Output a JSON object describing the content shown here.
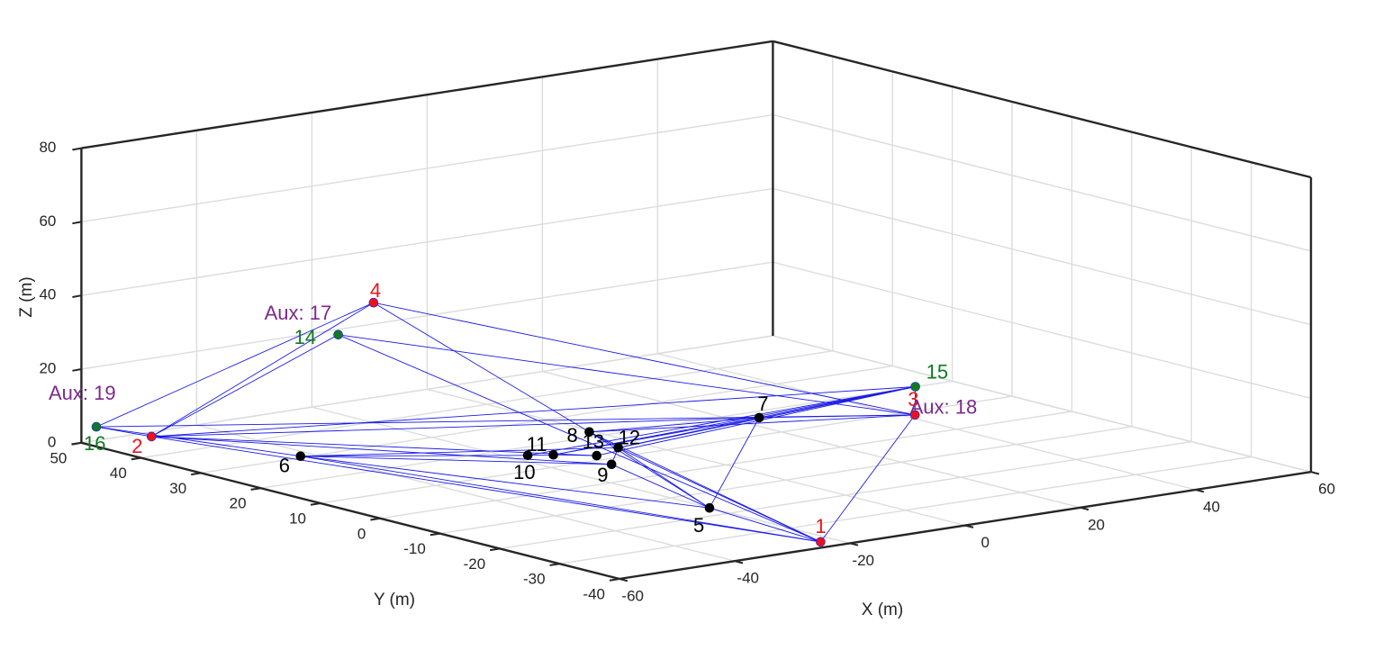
{
  "chart_data": {
    "type": "scatter3d",
    "title": "",
    "xlabel": "X (m)",
    "ylabel": "Y (m)",
    "zlabel": "Z (m)",
    "xlim": [
      -60,
      60
    ],
    "ylim": [
      -40,
      50
    ],
    "zlim": [
      0,
      80
    ],
    "x_ticks": [
      "-60",
      "-40",
      "-20",
      "0",
      "20",
      "40",
      "60"
    ],
    "y_ticks": [
      "-40",
      "-30",
      "-20",
      "-10",
      "0",
      "10",
      "20",
      "30",
      "40",
      "50"
    ],
    "z_ticks": [
      "0",
      "20",
      "40",
      "60",
      "80"
    ],
    "grid": true,
    "colors": {
      "anchor": "#e8141b",
      "aux": "#0f7a22",
      "node": "#000000",
      "link": "#1a1ae6",
      "aux_label": "#7b2a8e",
      "axis": "#262626",
      "grid": "#dcdcdc"
    },
    "nodes": [
      {
        "id": 1,
        "label": "1",
        "group": "anchor",
        "x": -22.6,
        "y": -37.6,
        "z": 0
      },
      {
        "id": 2,
        "label": "2",
        "group": "anchor",
        "x": -49.8,
        "y": 48.1,
        "z": 0
      },
      {
        "id": 3,
        "label": "3",
        "group": "anchor",
        "x": 41.6,
        "y": 8.5,
        "z": 0
      },
      {
        "id": 4,
        "label": "4",
        "group": "anchor",
        "x": -31.6,
        "y": 28.5,
        "z": 40
      },
      {
        "id": 5,
        "label": "5",
        "group": "node",
        "x": -20.1,
        "y": -16.6,
        "z": 0
      },
      {
        "id": 6,
        "label": "6",
        "group": "node",
        "x": -42.1,
        "y": 30.6,
        "z": 0
      },
      {
        "id": 7,
        "label": "7",
        "group": "node",
        "x": 23.7,
        "y": 17.3,
        "z": 0
      },
      {
        "id": 8,
        "label": "8",
        "group": "node",
        "x": -0.7,
        "y": 22.2,
        "z": 0
      },
      {
        "id": 9,
        "label": "9",
        "group": "node",
        "x": -12.1,
        "y": 7.5,
        "z": 0
      },
      {
        "id": 10,
        "label": "10",
        "group": "node",
        "x": -17.3,
        "y": 16.5,
        "z": 0
      },
      {
        "id": 11,
        "label": "11",
        "group": "node",
        "x": -14.3,
        "y": 15.1,
        "z": 0
      },
      {
        "id": 12,
        "label": "12",
        "group": "node",
        "x": -4.3,
        "y": 13.9,
        "z": 0
      },
      {
        "id": 13,
        "label": "13",
        "group": "node",
        "x": -10.0,
        "y": 12.0,
        "z": 0
      },
      {
        "id": 14,
        "label": "14",
        "group": "aux",
        "x": -36.5,
        "y": 29.7,
        "z": 32
      },
      {
        "id": 15,
        "label": "15",
        "group": "aux",
        "x": 53.7,
        "y": 20.1,
        "z": 0
      },
      {
        "id": 16,
        "label": "16",
        "group": "aux",
        "x": -51.6,
        "y": 55.6,
        "z": 0
      }
    ],
    "annotations": [
      {
        "text": "Aux: 17",
        "node": 14
      },
      {
        "text": "Aux: 18",
        "node": 15
      },
      {
        "text": "Aux: 19",
        "node": 16
      }
    ],
    "links": [
      [
        1,
        2
      ],
      [
        1,
        3
      ],
      [
        1,
        5
      ],
      [
        1,
        8
      ],
      [
        1,
        12
      ],
      [
        1,
        14
      ],
      [
        1,
        6
      ],
      [
        2,
        4
      ],
      [
        2,
        7
      ],
      [
        2,
        15
      ],
      [
        2,
        16
      ],
      [
        2,
        14
      ],
      [
        2,
        9
      ],
      [
        2,
        13
      ],
      [
        3,
        4
      ],
      [
        3,
        15
      ],
      [
        3,
        16
      ],
      [
        3,
        14
      ],
      [
        3,
        7
      ],
      [
        3,
        8
      ],
      [
        4,
        8
      ],
      [
        4,
        16
      ],
      [
        5,
        6
      ],
      [
        5,
        7
      ],
      [
        5,
        8
      ],
      [
        5,
        9
      ],
      [
        5,
        12
      ],
      [
        6,
        9
      ],
      [
        6,
        10
      ],
      [
        6,
        12
      ],
      [
        6,
        16
      ],
      [
        7,
        8
      ],
      [
        7,
        11
      ],
      [
        7,
        12
      ],
      [
        7,
        15
      ],
      [
        8,
        12
      ],
      [
        9,
        12
      ],
      [
        10,
        11
      ],
      [
        10,
        15
      ],
      [
        11,
        15
      ],
      [
        11,
        13
      ],
      [
        12,
        15
      ],
      [
        13,
        15
      ]
    ]
  }
}
